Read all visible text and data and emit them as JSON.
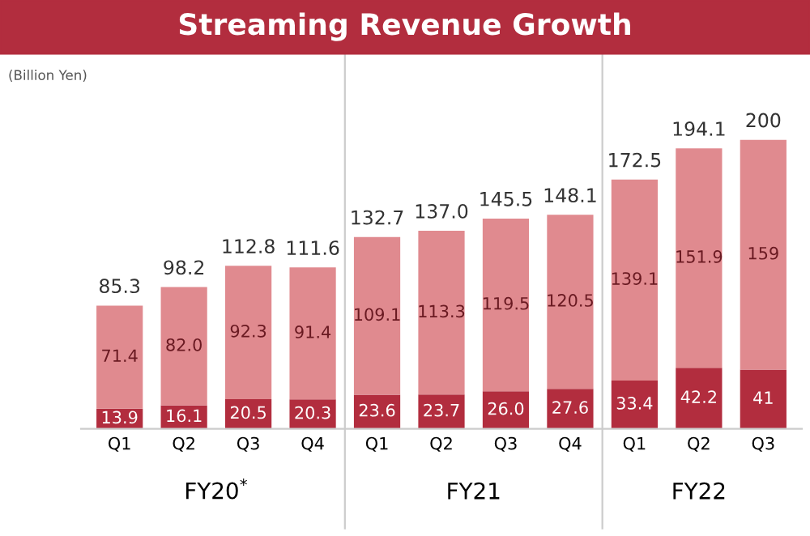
{
  "chart_data": {
    "type": "bar",
    "title": "Streaming Revenue Growth",
    "stacked": true,
    "data_labels": true,
    "categories": [
      "Q1",
      "Q2",
      "Q3",
      "Q4",
      "Q1",
      "Q2",
      "Q3",
      "Q4",
      "Q1",
      "Q2",
      "Q3"
    ],
    "series": [
      {
        "color": "#b22d3e",
        "values": [
          13.9,
          16.1,
          20.5,
          20.3,
          23.6,
          23.7,
          26.0,
          27.6,
          33.4,
          42.2,
          41
        ],
        "value_labels": [
          "13.9",
          "16.1",
          "20.5",
          "20.3",
          "23.6",
          "23.7",
          "26.0",
          "27.6",
          "33.4",
          "42.2",
          "41"
        ]
      },
      {
        "color": "#e08a8f",
        "values": [
          71.4,
          82.0,
          92.3,
          91.4,
          109.1,
          113.3,
          119.5,
          120.5,
          139.1,
          151.9,
          159
        ],
        "value_labels": [
          "71.4",
          "82.0",
          "92.3",
          "91.4",
          "109.1",
          "113.3",
          "119.5",
          "120.5",
          "139.1",
          "151.9",
          "159"
        ]
      }
    ],
    "totals": [
      "85.3",
      "98.2",
      "112.8",
      "111.6",
      "132.7",
      "137.0",
      "145.5",
      "148.1",
      "172.5",
      "194.1",
      "200"
    ],
    "annotations": [
      "(Billion Yen)",
      "FY20$^{*}$",
      "FY21",
      "FY22"
    ]
  }
}
